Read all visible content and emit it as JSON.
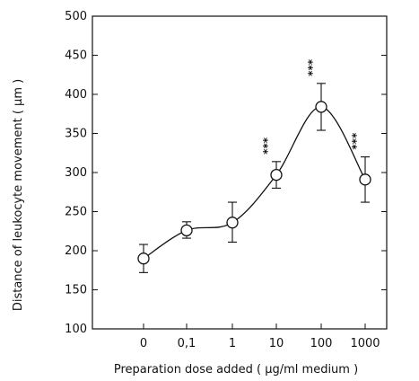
{
  "chart_data": {
    "type": "line",
    "title": "",
    "xlabel": "Preparation dose added ( µg/ml medium )",
    "ylabel": "Distance of leukocyte movement ( µm )",
    "categories": [
      "0",
      "0,1",
      "1",
      "10",
      "100",
      "1000"
    ],
    "x_axis_type": "categorical",
    "ylim": [
      100,
      500
    ],
    "yticks": [
      100,
      150,
      200,
      250,
      300,
      350,
      400,
      450,
      500
    ],
    "grid": false,
    "legend": "none",
    "marker": "open-circle",
    "curve": "smooth",
    "series": [
      {
        "values": [
          190,
          226,
          236,
          297,
          384,
          291
        ],
        "error_low": [
          172,
          216,
          211,
          280,
          354,
          262
        ],
        "error_high": [
          208,
          237,
          262,
          314,
          414,
          320
        ]
      }
    ],
    "annotations": [
      {
        "category": "10",
        "text": "***"
      },
      {
        "category": "100",
        "text": "***"
      },
      {
        "category": "1000",
        "text": "***"
      }
    ]
  }
}
